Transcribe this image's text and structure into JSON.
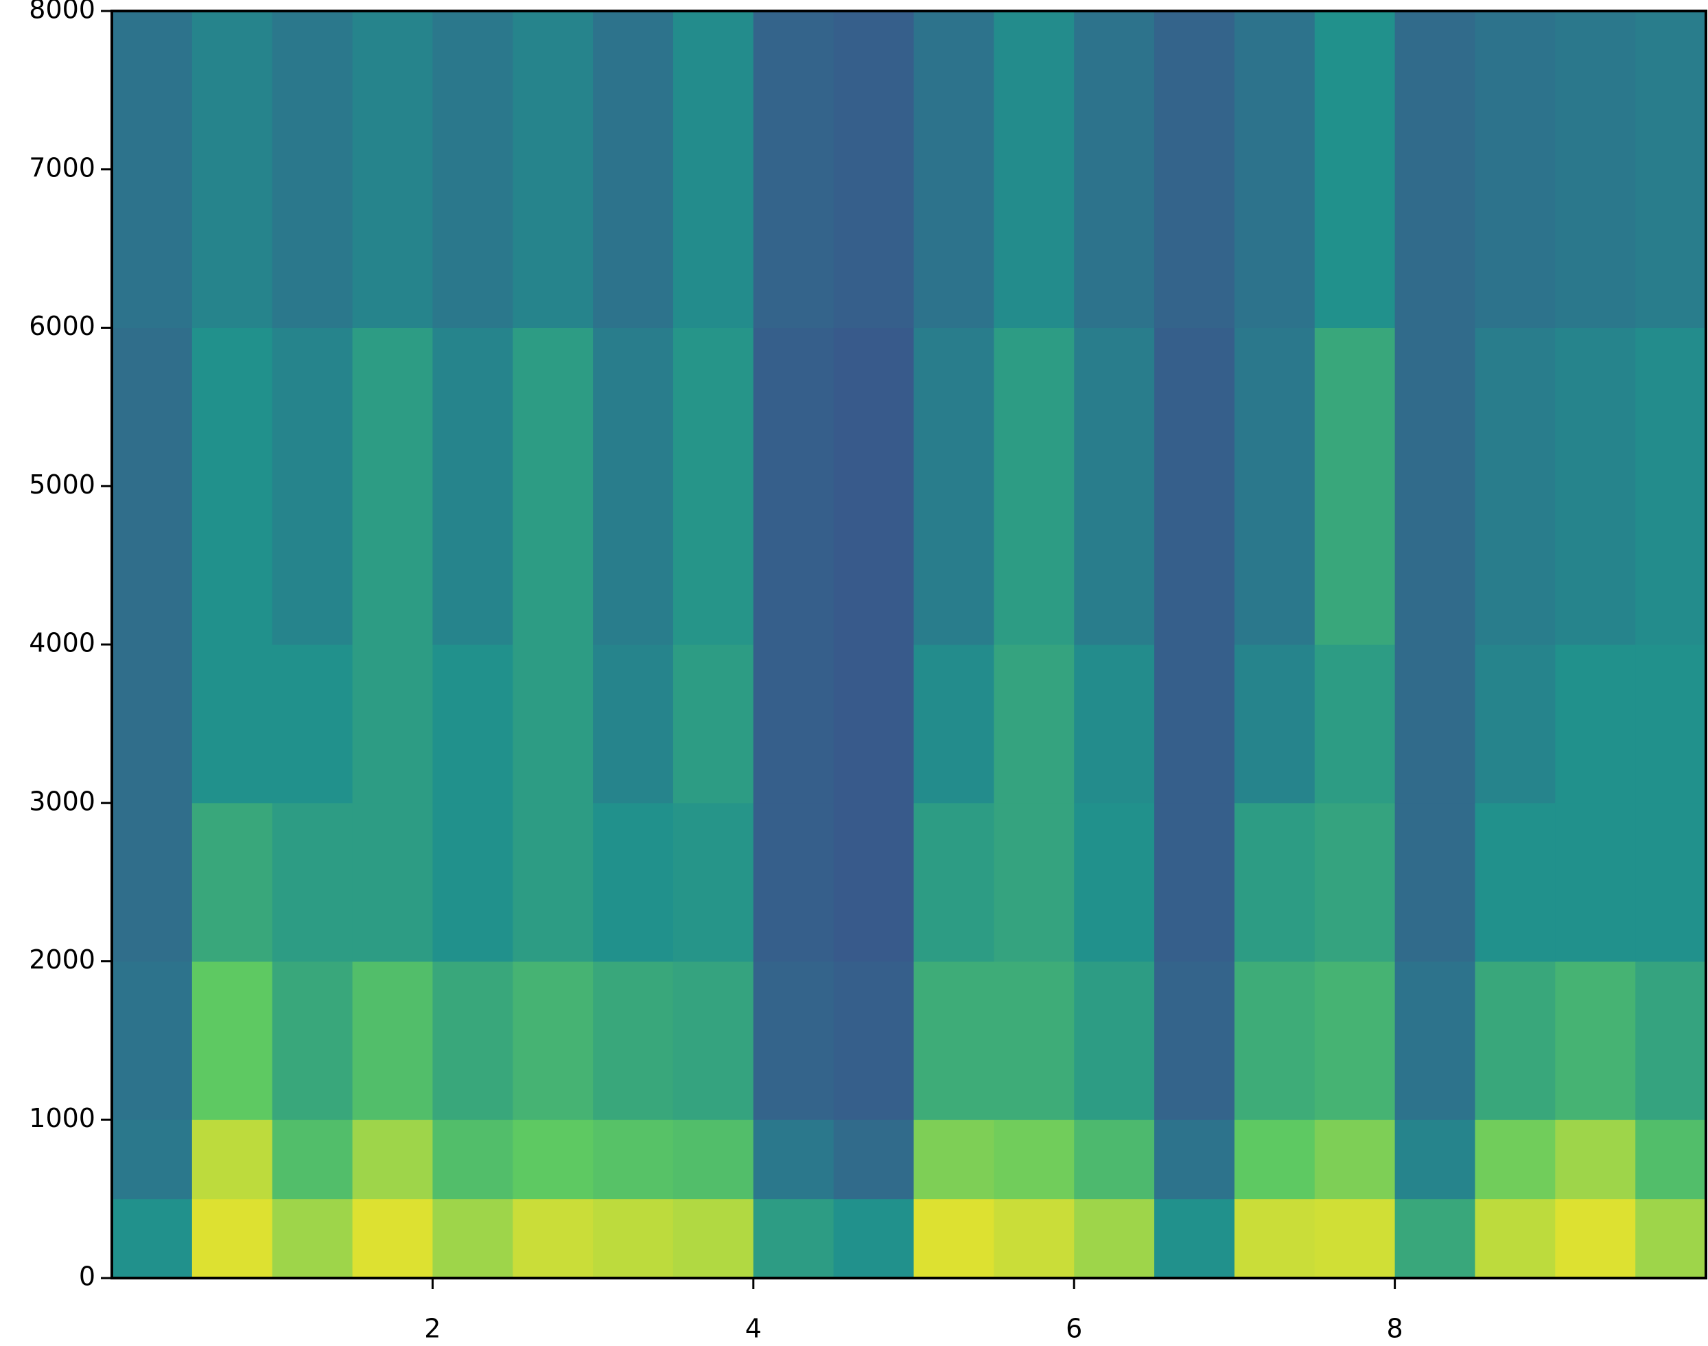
{
  "chart_data": {
    "type": "heatmap",
    "colormap": "viridis",
    "x": [
      0,
      0.5,
      1,
      1.5,
      2,
      2.5,
      3,
      3.5,
      4,
      4.5,
      5,
      5.5,
      6,
      6.5,
      7,
      7.5,
      8,
      8.5,
      9,
      9.5,
      9.94
    ],
    "y": [
      0,
      500,
      1000,
      2000,
      3000,
      4000,
      6000,
      8000
    ],
    "z": [
      [
        0.5,
        0.4,
        0.38,
        0.36,
        0.36,
        0.36,
        0.38
      ],
      [
        0.95,
        0.9,
        0.75,
        0.6,
        0.5,
        0.5,
        0.45
      ],
      [
        0.85,
        0.7,
        0.6,
        0.55,
        0.5,
        0.45,
        0.4
      ],
      [
        0.95,
        0.85,
        0.7,
        0.55,
        0.55,
        0.55,
        0.45
      ],
      [
        0.85,
        0.7,
        0.6,
        0.5,
        0.5,
        0.45,
        0.4
      ],
      [
        0.92,
        0.75,
        0.65,
        0.55,
        0.55,
        0.55,
        0.45
      ],
      [
        0.9,
        0.72,
        0.6,
        0.5,
        0.45,
        0.42,
        0.38
      ],
      [
        0.88,
        0.7,
        0.58,
        0.52,
        0.55,
        0.52,
        0.48
      ],
      [
        0.55,
        0.4,
        0.32,
        0.3,
        0.3,
        0.3,
        0.32
      ],
      [
        0.5,
        0.35,
        0.3,
        0.28,
        0.28,
        0.28,
        0.3
      ],
      [
        0.95,
        0.8,
        0.62,
        0.55,
        0.48,
        0.42,
        0.38
      ],
      [
        0.92,
        0.78,
        0.62,
        0.58,
        0.58,
        0.55,
        0.48
      ],
      [
        0.85,
        0.68,
        0.55,
        0.5,
        0.48,
        0.42,
        0.38
      ],
      [
        0.5,
        0.38,
        0.32,
        0.3,
        0.3,
        0.3,
        0.32
      ],
      [
        0.92,
        0.75,
        0.62,
        0.55,
        0.45,
        0.4,
        0.38
      ],
      [
        0.93,
        0.8,
        0.65,
        0.58,
        0.55,
        0.6,
        0.5
      ],
      [
        0.6,
        0.45,
        0.38,
        0.35,
        0.35,
        0.35,
        0.35
      ],
      [
        0.9,
        0.78,
        0.6,
        0.5,
        0.45,
        0.42,
        0.38
      ],
      [
        0.95,
        0.85,
        0.65,
        0.5,
        0.5,
        0.45,
        0.4
      ],
      [
        0.85,
        0.7,
        0.58,
        0.5,
        0.5,
        0.48,
        0.42
      ]
    ],
    "xlim": [
      0,
      9.94
    ],
    "ylim": [
      0,
      8000
    ],
    "xticks": [
      2,
      4,
      6,
      8
    ],
    "yticks": [
      0,
      1000,
      2000,
      3000,
      4000,
      5000,
      6000,
      7000,
      8000
    ]
  }
}
